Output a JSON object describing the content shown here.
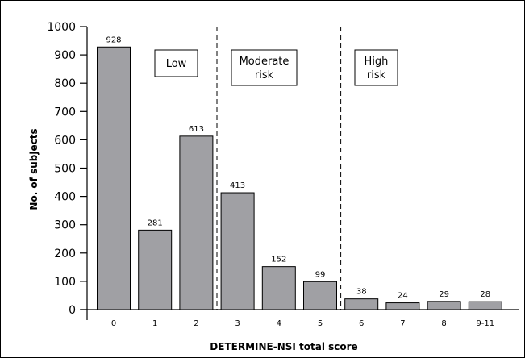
{
  "chart_data": {
    "type": "bar",
    "categories": [
      "0",
      "1",
      "2",
      "3",
      "4",
      "5",
      "6",
      "7",
      "8",
      "9-11"
    ],
    "values": [
      928,
      281,
      613,
      413,
      152,
      99,
      38,
      24,
      29,
      28
    ],
    "xlabel": "DETERMINE-NSI total score",
    "ylabel": "No. of subjects",
    "ylim": [
      0,
      1000
    ],
    "yticks": [
      0,
      100,
      200,
      300,
      400,
      500,
      600,
      700,
      800,
      900,
      1000
    ],
    "grid": false,
    "bar_color": "#a0a0a4",
    "annotations": [
      {
        "lines": [
          "Low"
        ],
        "category_span": [
          "0",
          "2"
        ]
      },
      {
        "lines": [
          "Moderate",
          "risk"
        ],
        "category_span": [
          "3",
          "5"
        ]
      },
      {
        "lines": [
          "High",
          "risk"
        ],
        "category_span": [
          "6",
          "9-11"
        ]
      }
    ],
    "dividers_after": [
      "2",
      "5"
    ]
  }
}
